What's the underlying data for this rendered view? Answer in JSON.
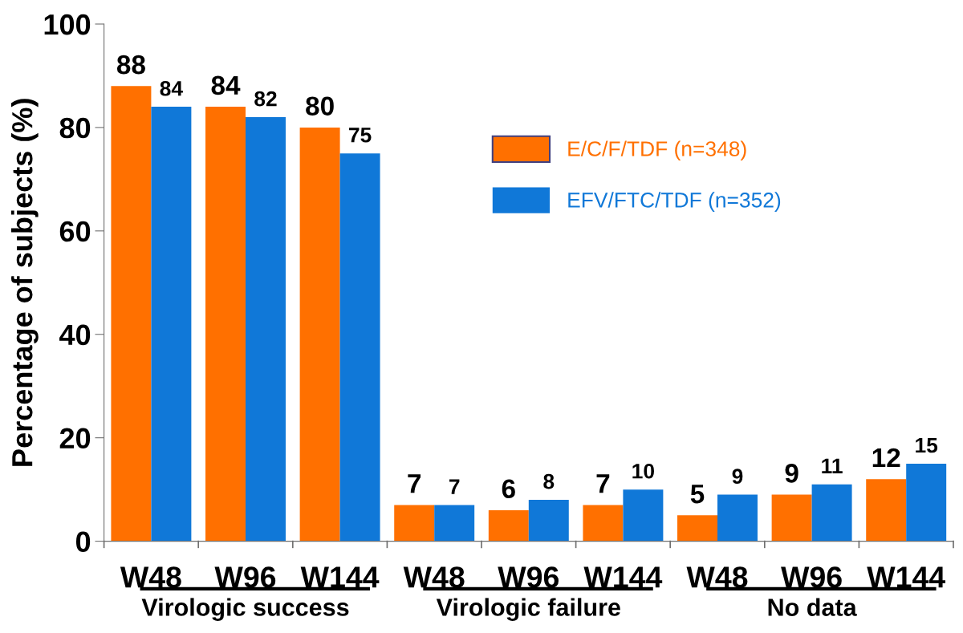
{
  "chart_data": {
    "type": "bar",
    "categories": [
      "W48",
      "W96",
      "W144",
      "W48",
      "W96",
      "W144",
      "W48",
      "W96",
      "W144"
    ],
    "series": [
      {
        "name": "E/C/F/TDF (n=348)",
        "color": "#ff7000",
        "values": [
          88,
          84,
          80,
          7,
          6,
          7,
          5,
          9,
          12
        ]
      },
      {
        "name": "EFV/FTC/TDF (n=352)",
        "color": "#1078d8",
        "values": [
          84,
          82,
          75,
          7,
          8,
          10,
          9,
          11,
          15
        ]
      }
    ],
    "ylabel": "Percentage of subjects (%)",
    "ylim": [
      0,
      100
    ],
    "yticks": [
      0,
      20,
      40,
      60,
      80,
      100
    ],
    "annotations": [
      "Virologic success",
      "Virologic failure",
      "No data"
    ],
    "data_labels": true,
    "grid": false,
    "legend": "top right"
  }
}
